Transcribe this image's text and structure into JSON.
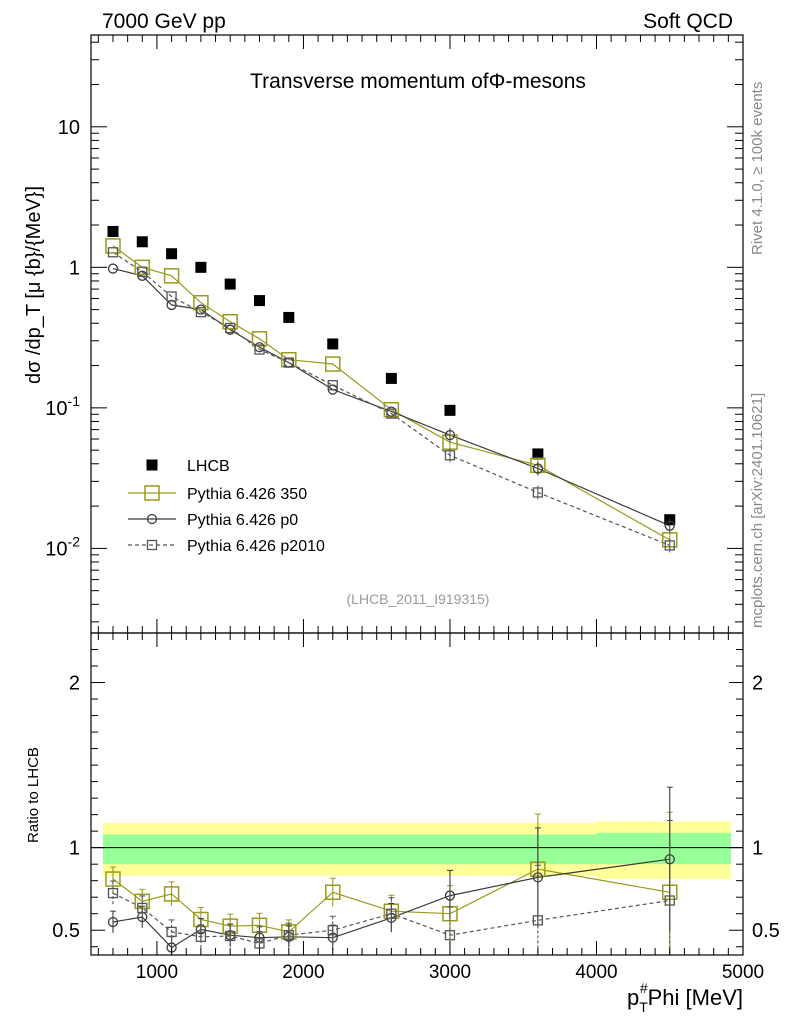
{
  "header": {
    "left": "7000 GeV pp",
    "right": "Soft QCD"
  },
  "side": {
    "rivet": "Rivet 4.1.0, ≥ 100k events",
    "mcplots": "mcplots.cern.ch [arXiv:2401.10621]"
  },
  "chart_data": [
    {
      "type": "scatter",
      "title": "Transverse momentum ofΦ-mesons",
      "analysis_label": "(LHCB_2011_I919315)",
      "ylabel": "dσ /dp_T [μ {b}/{MeV}]",
      "yscale": "log",
      "xlim": [
        550,
        5000
      ],
      "ylim": [
        0.0025,
        45
      ],
      "ytick_labels": [
        "10^-2",
        "10^-1",
        "1",
        "10"
      ],
      "x": [
        700,
        900,
        1100,
        1300,
        1500,
        1700,
        1900,
        2200,
        2600,
        3000,
        3600,
        4500
      ],
      "series": [
        {
          "name": "LHCB",
          "marker": "filled-square",
          "color": "#000000",
          "values": [
            1.8,
            1.52,
            1.25,
            1.0,
            0.76,
            0.58,
            0.44,
            0.285,
            0.162,
            0.096,
            0.047,
            0.016
          ]
        },
        {
          "name": "Pythia 6.426 350",
          "marker": "open-square",
          "line": "solid",
          "color": "#9a9a1c",
          "values": [
            1.42,
            1.0,
            0.87,
            0.56,
            0.41,
            0.31,
            0.22,
            0.205,
            0.097,
            0.057,
            0.039,
            0.0115
          ]
        },
        {
          "name": "Pythia 6.426 p0",
          "marker": "open-circle",
          "line": "solid",
          "color": "#3c3c3c",
          "values": [
            0.98,
            0.87,
            0.54,
            0.5,
            0.36,
            0.27,
            0.21,
            0.135,
            0.094,
            0.064,
            0.037,
            0.0145
          ]
        },
        {
          "name": "Pythia 6.426 p2010",
          "marker": "open-square-small",
          "line": "dashed",
          "color": "#555555",
          "values": [
            1.28,
            0.93,
            0.62,
            0.48,
            0.37,
            0.26,
            0.21,
            0.145,
            0.091,
            0.046,
            0.025,
            0.0105
          ]
        }
      ]
    },
    {
      "type": "scatter",
      "ylabel": "Ratio to LHCB",
      "xlabel": "p_T^#Phi [MeV]",
      "xlim": [
        550,
        5000
      ],
      "ylim": [
        0.35,
        2.3
      ],
      "xticks": [
        1000,
        2000,
        3000,
        4000,
        5000
      ],
      "yticks": [
        0.5,
        1,
        2
      ],
      "x": [
        700,
        900,
        1100,
        1300,
        1500,
        1700,
        1900,
        2200,
        2600,
        3000,
        3600,
        4500
      ],
      "bands": {
        "green": [
          {
            "x0": 550,
            "x1": 4000,
            "lo": 0.9,
            "hi": 1.08
          },
          {
            "x0": 4000,
            "x1": 5000,
            "lo": 0.9,
            "hi": 1.09
          }
        ],
        "yellow": [
          {
            "x0": 550,
            "x1": 4000,
            "lo": 0.83,
            "hi": 1.15
          },
          {
            "x0": 4000,
            "x1": 5000,
            "lo": 0.81,
            "hi": 1.16
          }
        ]
      },
      "series": [
        {
          "name": "Pythia 6.426 350",
          "values": [
            0.81,
            0.675,
            0.72,
            0.565,
            0.525,
            0.53,
            0.49,
            0.73,
            0.615,
            0.6,
            0.87,
            0.73
          ]
        },
        {
          "name": "Pythia 6.426 p0",
          "values": [
            0.55,
            0.58,
            0.395,
            0.505,
            0.47,
            0.455,
            0.46,
            0.455,
            0.575,
            0.71,
            0.82,
            0.93
          ]
        },
        {
          "name": "Pythia 6.426 p2010",
          "values": [
            0.725,
            0.635,
            0.49,
            0.46,
            0.465,
            0.42,
            0.47,
            0.5,
            0.6,
            0.47,
            0.56,
            0.68
          ]
        }
      ]
    }
  ]
}
